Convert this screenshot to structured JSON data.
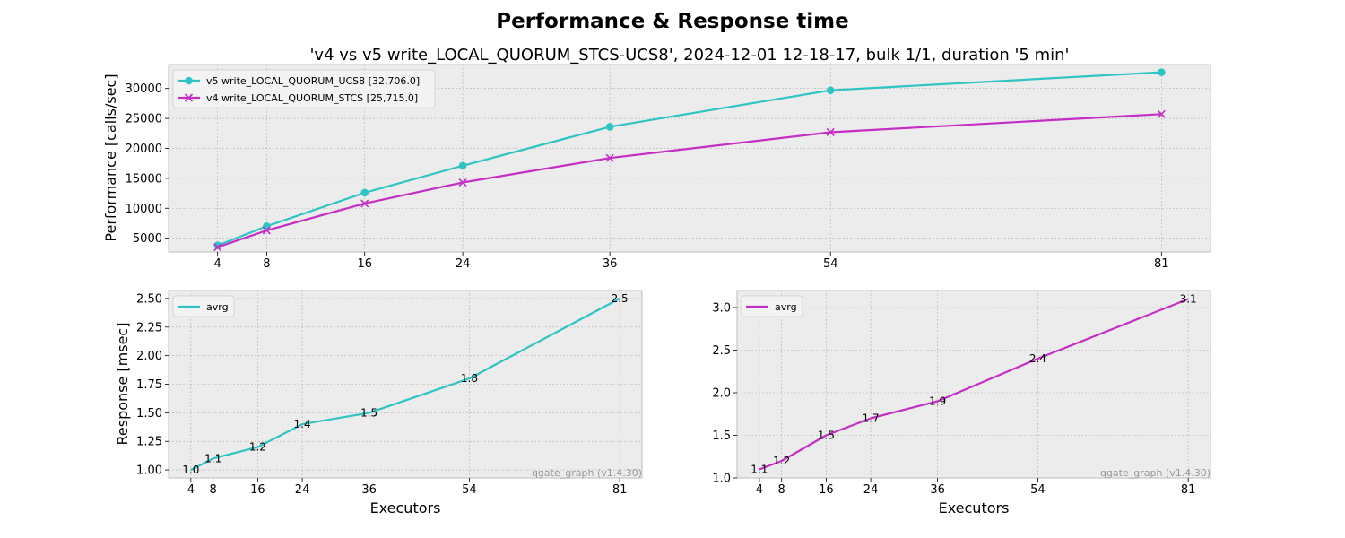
{
  "figure": {
    "title": "Performance & Response time",
    "subtitle": "'v4 vs v5 write_LOCAL_QUORUM_STCS-UCS8', 2024-12-01 12-18-17, bulk 1/1, duration '5 min'",
    "watermark": "qgate_graph (v1.4.30)"
  },
  "colors": {
    "v5": "#2ec4c4",
    "v4": "#c42ec4",
    "axes_bg": "#ececec",
    "grid": "#b0b0b0",
    "spine": "#bdbdbd"
  },
  "chart_data": [
    {
      "type": "line",
      "id": "performance",
      "xlabel": "",
      "ylabel": "Performance [calls/sec]",
      "x": [
        4,
        8,
        16,
        24,
        36,
        54,
        81
      ],
      "xticks": [
        4,
        8,
        16,
        24,
        36,
        54,
        81
      ],
      "yticks": [
        5000,
        10000,
        15000,
        20000,
        25000,
        30000
      ],
      "xlim": [
        0,
        85
      ],
      "ylim": [
        2700,
        34000
      ],
      "grid": true,
      "legend_position": "top-left",
      "series": [
        {
          "name": "v5 write_LOCAL_QUORUM_UCS8 [32,706.0]",
          "color": "#2ec4c4",
          "marker": "circle",
          "values": [
            3800,
            7000,
            12600,
            17100,
            23600,
            29700,
            32706
          ]
        },
        {
          "name": "v4 write_LOCAL_QUORUM_STCS [25,715.0]",
          "color": "#c42ec4",
          "marker": "x",
          "values": [
            3500,
            6300,
            10800,
            14300,
            18400,
            22700,
            25715
          ]
        }
      ]
    },
    {
      "type": "line",
      "id": "response-v5",
      "xlabel": "Executors",
      "ylabel": "Response [msec]",
      "x": [
        4,
        8,
        16,
        24,
        36,
        54,
        81
      ],
      "xticks": [
        4,
        8,
        16,
        24,
        36,
        54,
        81
      ],
      "yticks": [
        1.0,
        1.25,
        1.5,
        1.75,
        2.0,
        2.25,
        2.5
      ],
      "ytick_labels": [
        "1.00",
        "1.25",
        "1.50",
        "1.75",
        "2.00",
        "2.25",
        "2.50"
      ],
      "xlim": [
        0,
        85
      ],
      "ylim": [
        0.93,
        2.57
      ],
      "grid": true,
      "legend_position": "top-left",
      "series": [
        {
          "name": "avrg",
          "color": "#2ec4c4",
          "values": [
            1.0,
            1.1,
            1.2,
            1.4,
            1.5,
            1.8,
            2.5
          ],
          "labels": [
            "1.0",
            "1.1",
            "1.2",
            "1.4",
            "1.5",
            "1.8",
            "2.5"
          ]
        }
      ]
    },
    {
      "type": "line",
      "id": "response-v4",
      "xlabel": "Executors",
      "ylabel": "",
      "x": [
        4,
        8,
        16,
        24,
        36,
        54,
        81
      ],
      "xticks": [
        4,
        8,
        16,
        24,
        36,
        54,
        81
      ],
      "yticks": [
        1.0,
        1.5,
        2.0,
        2.5,
        3.0
      ],
      "ytick_labels": [
        "1.0",
        "1.5",
        "2.0",
        "2.5",
        "3.0"
      ],
      "xlim": [
        0,
        85
      ],
      "ylim": [
        1.0,
        3.2
      ],
      "grid": true,
      "legend_position": "top-left",
      "series": [
        {
          "name": "avrg",
          "color": "#c42ec4",
          "values": [
            1.1,
            1.2,
            1.5,
            1.7,
            1.9,
            2.4,
            3.1
          ],
          "labels": [
            "1.1",
            "1.2",
            "1.5",
            "1.7",
            "1.9",
            "2.4",
            "3.1"
          ]
        }
      ]
    }
  ]
}
